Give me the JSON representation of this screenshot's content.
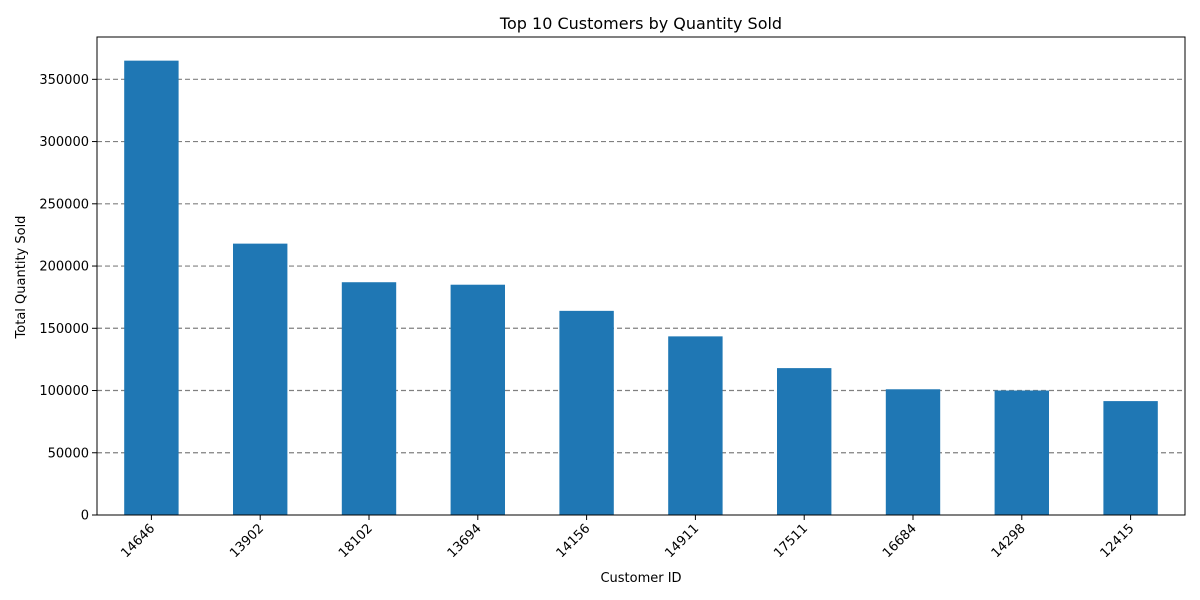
{
  "chart_data": {
    "type": "bar",
    "title": "Top 10 Customers by Quantity Sold",
    "xlabel": "Customer ID",
    "ylabel": "Total Quantity Sold",
    "categories": [
      "14646",
      "13902",
      "18102",
      "13694",
      "14156",
      "14911",
      "17511",
      "16684",
      "14298",
      "12415"
    ],
    "values": [
      365000,
      218000,
      187000,
      185000,
      164000,
      143500,
      118000,
      101000,
      100000,
      91500
    ],
    "ylim": [
      0,
      384000
    ],
    "yticks": [
      0,
      50000,
      100000,
      150000,
      200000,
      250000,
      300000,
      350000
    ],
    "grid": "y-dashed",
    "legend": "none",
    "colors": {
      "bar": "#1f77b4",
      "grid": "#808080",
      "axis": "#000000"
    }
  }
}
